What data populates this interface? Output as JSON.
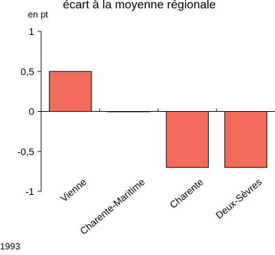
{
  "chart_data": {
    "type": "bar",
    "title": "écart à la moyenne régionale",
    "ylabel": "en pt",
    "categories": [
      "Vienne",
      "Charente-Maritime",
      "Charente",
      "Deux-Sèvres"
    ],
    "values": [
      0.5,
      0.0,
      -0.7,
      -0.7
    ],
    "ylim": [
      -1,
      1
    ],
    "yticks": [
      1,
      0.5,
      0,
      -0.5,
      -1
    ],
    "ytick_labels": [
      "1",
      "0,5",
      "0",
      "-0,5",
      "-1"
    ],
    "grid": false,
    "legend": "none",
    "bar_color": "#f26b5b",
    "bar_edge_color": "#000000",
    "footer": "1993"
  }
}
